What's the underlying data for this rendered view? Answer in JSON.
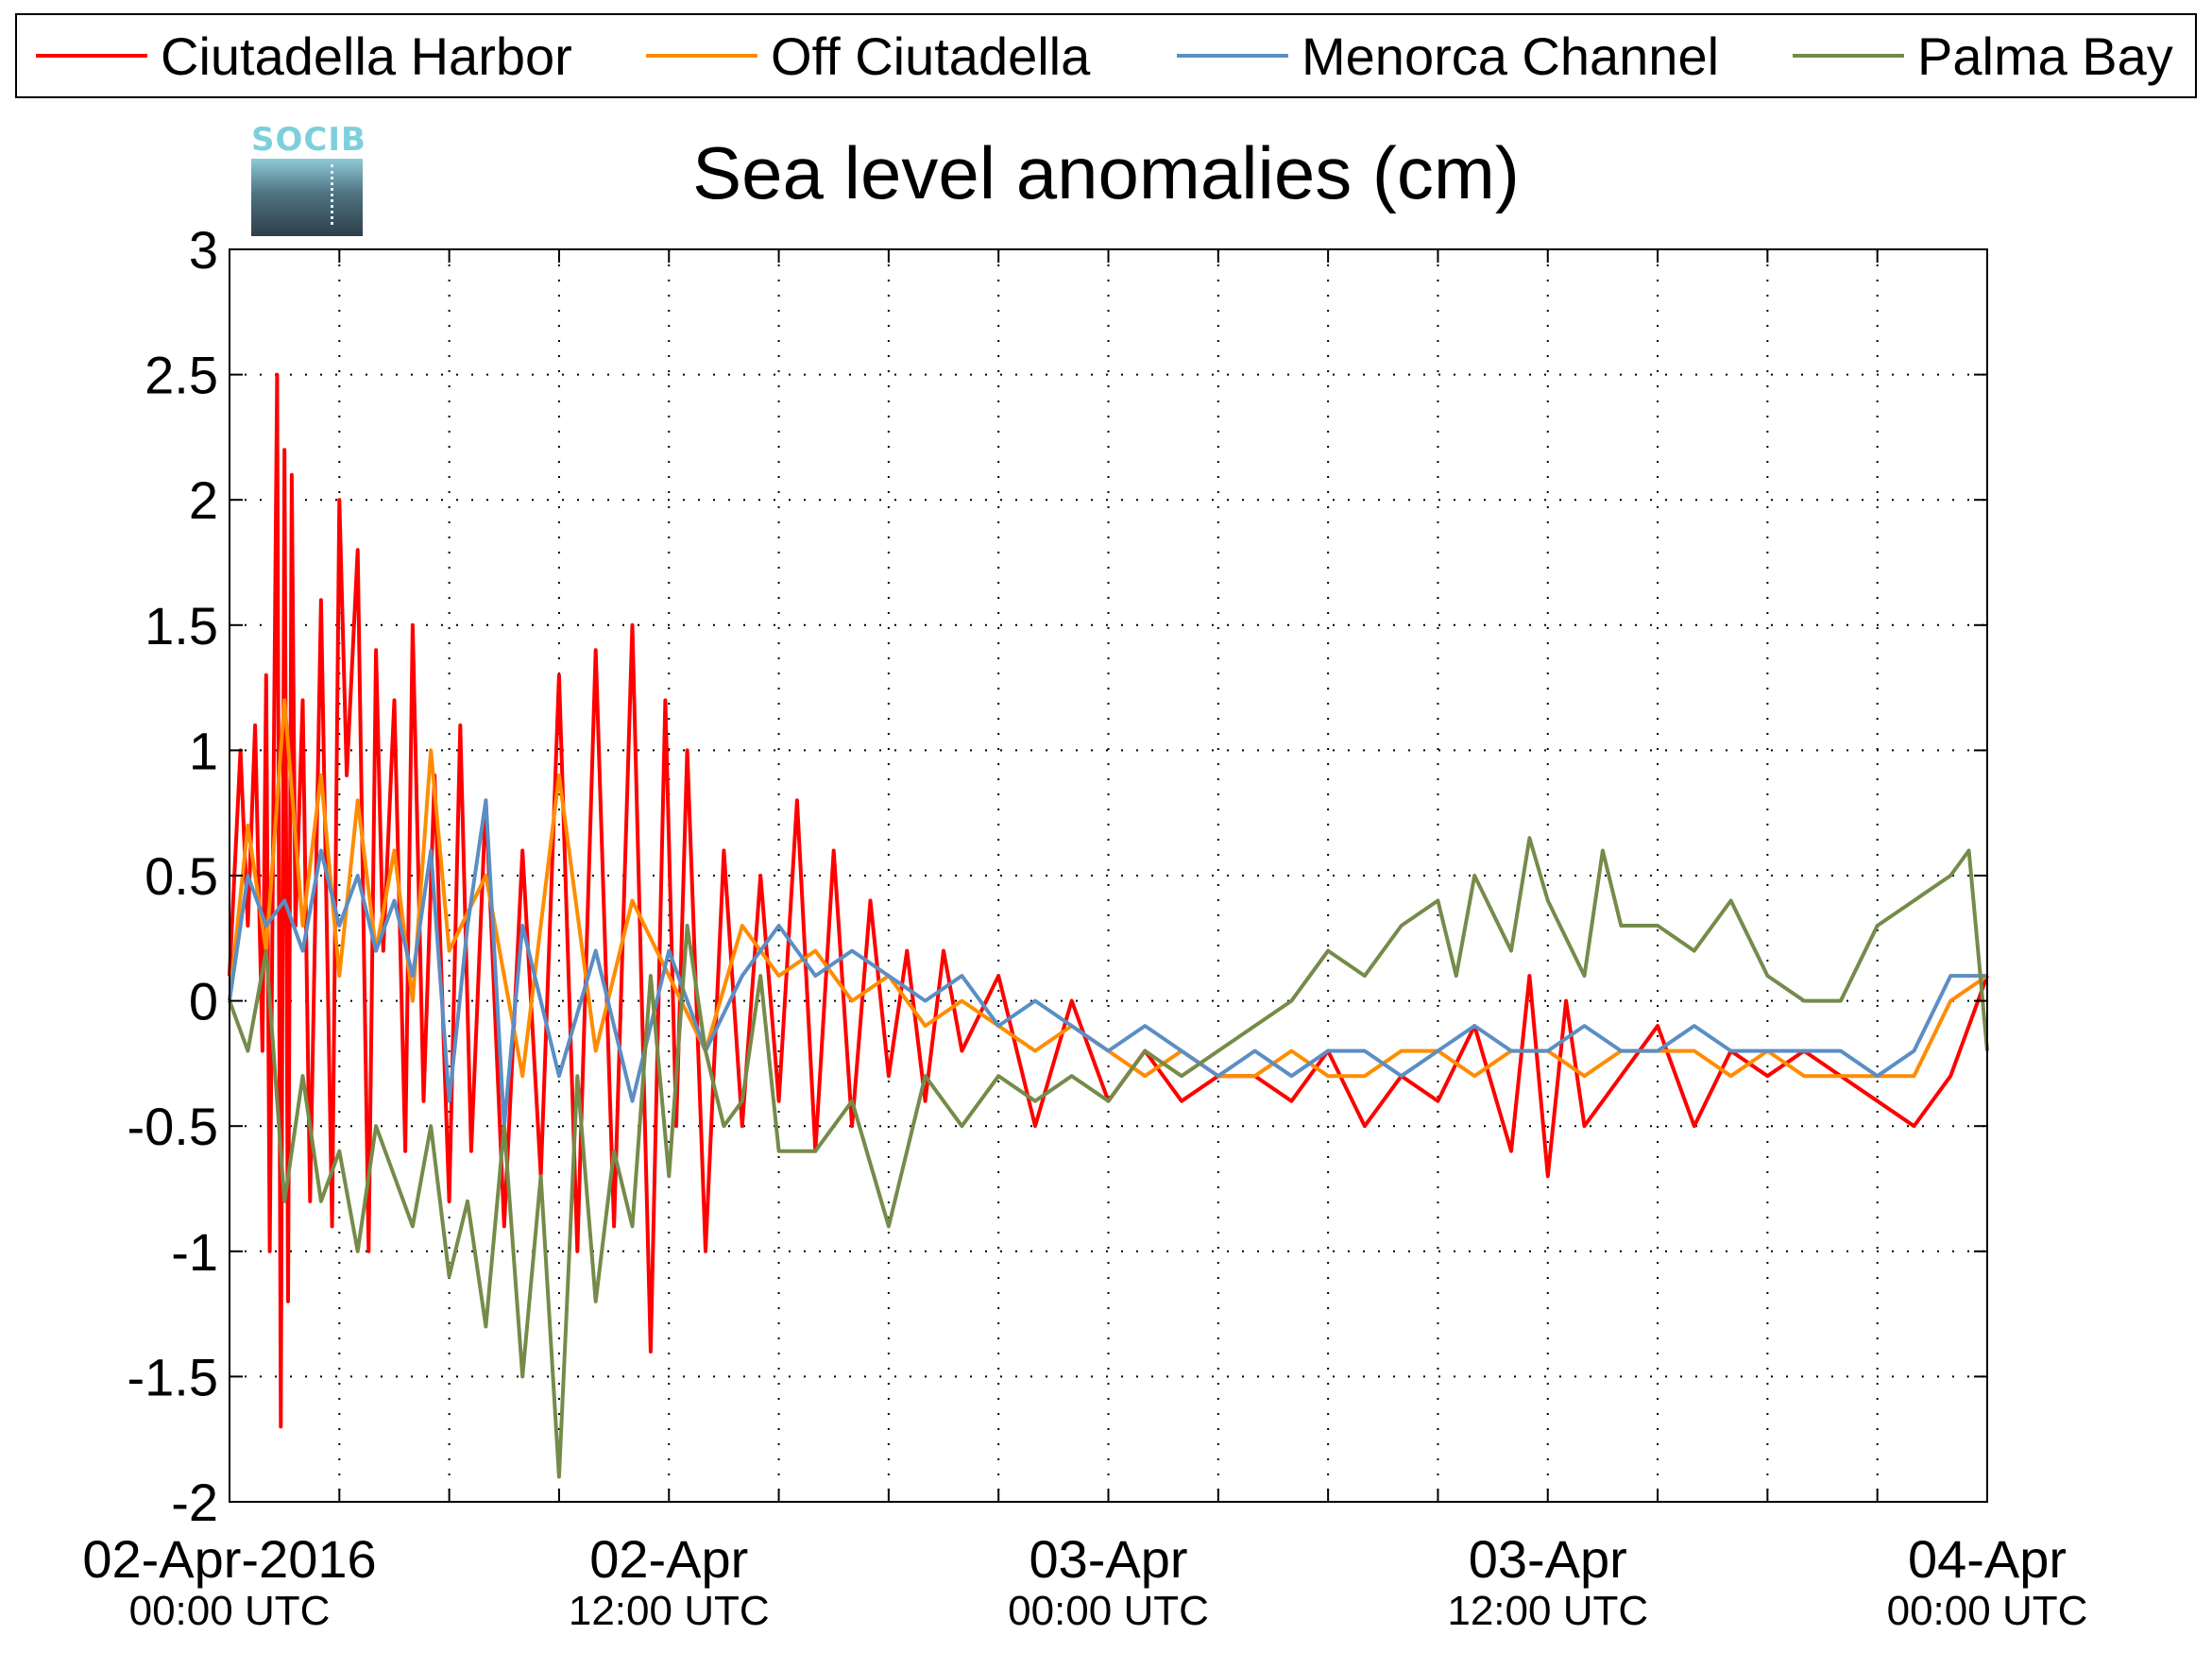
{
  "logo": {
    "text": "SOCIB"
  },
  "chart_data": {
    "type": "line",
    "title": "Sea level anomalies (cm)",
    "xlabel": "",
    "ylabel": "",
    "x_unit": "hours since 02-Apr-2016 00:00 UTC",
    "xlim": [
      0,
      48
    ],
    "ylim": [
      -2,
      3
    ],
    "y_ticks": [
      -2,
      -1.5,
      -1,
      -0.5,
      0,
      0.5,
      1,
      1.5,
      2,
      2.5,
      3
    ],
    "x_minor_ticks_hours": [
      0,
      3,
      6,
      9,
      12,
      15,
      18,
      21,
      24,
      27,
      30,
      33,
      36,
      39,
      42,
      45,
      48
    ],
    "x_ticks": [
      {
        "hour": 0,
        "date": "02-Apr-2016",
        "time": "00:00 UTC"
      },
      {
        "hour": 12,
        "date": "02-Apr",
        "time": "12:00 UTC"
      },
      {
        "hour": 24,
        "date": "03-Apr",
        "time": "00:00 UTC"
      },
      {
        "hour": 36,
        "date": "03-Apr",
        "time": "12:00 UTC"
      },
      {
        "hour": 48,
        "date": "04-Apr",
        "time": "00:00 UTC"
      }
    ],
    "grid": true,
    "legend_position": "top",
    "series": [
      {
        "name": "Ciutadella Harbor",
        "color": "#ff0000",
        "x": [
          0,
          0.3,
          0.5,
          0.7,
          0.9,
          1.0,
          1.1,
          1.2,
          1.3,
          1.4,
          1.5,
          1.6,
          1.7,
          1.8,
          2.0,
          2.2,
          2.5,
          2.8,
          3.0,
          3.2,
          3.5,
          3.8,
          4.0,
          4.2,
          4.5,
          4.8,
          5.0,
          5.3,
          5.6,
          6.0,
          6.3,
          6.6,
          7.0,
          7.5,
          8.0,
          8.5,
          9.0,
          9.5,
          10.0,
          10.5,
          11.0,
          11.5,
          11.9,
          12.2,
          12.5,
          13.0,
          13.5,
          14.0,
          14.5,
          15.0,
          15.5,
          16.0,
          16.5,
          17.0,
          17.5,
          18.0,
          18.5,
          19.0,
          19.5,
          20.0,
          21.0,
          22.0,
          23.0,
          24.0,
          25.0,
          26.0,
          27.0,
          28.0,
          29.0,
          30.0,
          31.0,
          32.0,
          33.0,
          34.0,
          35.0,
          35.5,
          36.0,
          36.5,
          37.0,
          38.0,
          39.0,
          40.0,
          41.0,
          42.0,
          43.0,
          44.0,
          45.0,
          46.0,
          47.0,
          48.0
        ],
        "values": [
          0.1,
          1.0,
          0.3,
          1.1,
          -0.2,
          1.3,
          -1.0,
          0.8,
          2.5,
          -1.7,
          2.2,
          -1.2,
          2.1,
          0.3,
          1.2,
          -0.8,
          1.6,
          -0.9,
          2.0,
          0.9,
          1.8,
          -1.0,
          1.4,
          0.2,
          1.2,
          -0.6,
          1.5,
          -0.4,
          0.9,
          -0.8,
          1.1,
          -0.6,
          0.8,
          -0.9,
          0.6,
          -0.7,
          1.3,
          -1.0,
          1.4,
          -0.9,
          1.5,
          -1.4,
          1.2,
          -0.5,
          1.0,
          -1.0,
          0.6,
          -0.5,
          0.5,
          -0.4,
          0.8,
          -0.6,
          0.6,
          -0.5,
          0.4,
          -0.3,
          0.2,
          -0.4,
          0.2,
          -0.2,
          0.1,
          -0.5,
          0.0,
          -0.4,
          -0.2,
          -0.4,
          -0.3,
          -0.3,
          -0.4,
          -0.2,
          -0.5,
          -0.3,
          -0.4,
          -0.1,
          -0.6,
          0.1,
          -0.7,
          0.0,
          -0.5,
          -0.3,
          -0.1,
          -0.5,
          -0.2,
          -0.3,
          -0.2,
          -0.3,
          -0.4,
          -0.5,
          -0.3,
          0.1
        ]
      },
      {
        "name": "Off Ciutadella",
        "color": "#ff8c00",
        "x": [
          0,
          0.5,
          1.0,
          1.5,
          2.0,
          2.5,
          3.0,
          3.5,
          4.0,
          4.5,
          5.0,
          5.5,
          6.0,
          7.0,
          8.0,
          9.0,
          10.0,
          11.0,
          12.0,
          13.0,
          14.0,
          15.0,
          16.0,
          17.0,
          18.0,
          19.0,
          20.0,
          21.0,
          22.0,
          23.0,
          24.0,
          25.0,
          26.0,
          27.0,
          28.0,
          29.0,
          30.0,
          31.0,
          32.0,
          33.0,
          34.0,
          35.0,
          36.0,
          37.0,
          38.0,
          39.0,
          40.0,
          41.0,
          42.0,
          43.0,
          44.0,
          45.0,
          46.0,
          47.0,
          48.0
        ],
        "values": [
          0.0,
          0.7,
          0.2,
          1.2,
          0.3,
          0.9,
          0.1,
          0.8,
          0.2,
          0.6,
          0.0,
          1.0,
          0.2,
          0.5,
          -0.3,
          0.9,
          -0.2,
          0.4,
          0.1,
          -0.2,
          0.3,
          0.1,
          0.2,
          0.0,
          0.1,
          -0.1,
          0.0,
          -0.1,
          -0.2,
          -0.1,
          -0.2,
          -0.3,
          -0.2,
          -0.3,
          -0.3,
          -0.2,
          -0.3,
          -0.3,
          -0.2,
          -0.2,
          -0.3,
          -0.2,
          -0.2,
          -0.3,
          -0.2,
          -0.2,
          -0.2,
          -0.3,
          -0.2,
          -0.3,
          -0.3,
          -0.3,
          -0.3,
          0.0,
          0.1
        ]
      },
      {
        "name": "Menorca Channel",
        "color": "#5b8ec4",
        "x": [
          0,
          0.5,
          1.0,
          1.5,
          2.0,
          2.5,
          3.0,
          3.5,
          4.0,
          4.5,
          5.0,
          5.5,
          6.0,
          6.5,
          7.0,
          7.5,
          8.0,
          9.0,
          10.0,
          11.0,
          12.0,
          13.0,
          14.0,
          15.0,
          16.0,
          17.0,
          18.0,
          19.0,
          20.0,
          21.0,
          22.0,
          23.0,
          24.0,
          25.0,
          26.0,
          27.0,
          28.0,
          29.0,
          30.0,
          31.0,
          32.0,
          33.0,
          34.0,
          35.0,
          36.0,
          37.0,
          38.0,
          39.0,
          40.0,
          41.0,
          42.0,
          43.0,
          44.0,
          45.0,
          46.0,
          47.0,
          48.0
        ],
        "values": [
          0.0,
          0.5,
          0.3,
          0.4,
          0.2,
          0.6,
          0.3,
          0.5,
          0.2,
          0.4,
          0.1,
          0.6,
          -0.4,
          0.3,
          0.8,
          -0.5,
          0.3,
          -0.3,
          0.2,
          -0.4,
          0.2,
          -0.2,
          0.1,
          0.3,
          0.1,
          0.2,
          0.1,
          0.0,
          0.1,
          -0.1,
          0.0,
          -0.1,
          -0.2,
          -0.1,
          -0.2,
          -0.3,
          -0.2,
          -0.3,
          -0.2,
          -0.2,
          -0.3,
          -0.2,
          -0.1,
          -0.2,
          -0.2,
          -0.1,
          -0.2,
          -0.2,
          -0.1,
          -0.2,
          -0.2,
          -0.2,
          -0.2,
          -0.3,
          -0.2,
          0.1,
          0.1
        ]
      },
      {
        "name": "Palma Bay",
        "color": "#758b4a",
        "x": [
          0,
          0.5,
          1.0,
          1.5,
          2.0,
          2.5,
          3.0,
          3.5,
          4.0,
          4.5,
          5.0,
          5.5,
          6.0,
          6.5,
          7.0,
          7.5,
          8.0,
          8.5,
          9.0,
          9.5,
          10.0,
          10.5,
          11.0,
          11.5,
          12.0,
          12.5,
          13.0,
          13.5,
          14.0,
          14.5,
          15.0,
          16.0,
          17.0,
          18.0,
          19.0,
          20.0,
          21.0,
          22.0,
          23.0,
          24.0,
          25.0,
          26.0,
          27.0,
          28.0,
          29.0,
          30.0,
          31.0,
          32.0,
          33.0,
          33.5,
          34.0,
          35.0,
          35.5,
          36.0,
          37.0,
          37.5,
          38.0,
          39.0,
          40.0,
          41.0,
          42.0,
          43.0,
          44.0,
          45.0,
          46.0,
          47.0,
          47.5,
          48.0
        ],
        "values": [
          0.0,
          -0.2,
          0.2,
          -0.8,
          -0.3,
          -0.8,
          -0.6,
          -1.0,
          -0.5,
          -0.7,
          -0.9,
          -0.5,
          -1.1,
          -0.8,
          -1.3,
          -0.5,
          -1.5,
          -0.7,
          -1.9,
          -0.3,
          -1.2,
          -0.6,
          -0.9,
          0.1,
          -0.7,
          0.3,
          -0.2,
          -0.5,
          -0.4,
          0.1,
          -0.6,
          -0.6,
          -0.4,
          -0.9,
          -0.3,
          -0.5,
          -0.3,
          -0.4,
          -0.3,
          -0.4,
          -0.2,
          -0.3,
          -0.2,
          -0.1,
          0.0,
          0.2,
          0.1,
          0.3,
          0.4,
          0.1,
          0.5,
          0.2,
          0.65,
          0.4,
          0.1,
          0.6,
          0.3,
          0.3,
          0.2,
          0.4,
          0.1,
          0.0,
          0.0,
          0.3,
          0.4,
          0.5,
          0.6,
          -0.2
        ]
      }
    ]
  }
}
